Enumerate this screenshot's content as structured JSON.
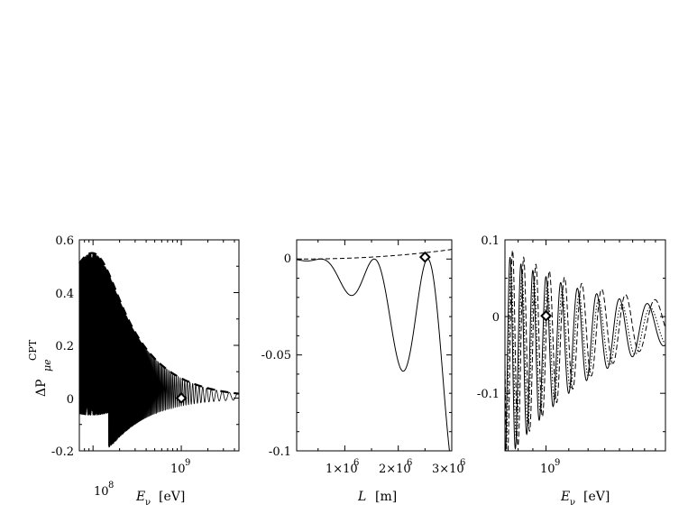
{
  "chart_data": [
    {
      "type": "line",
      "panel": "left",
      "ylabel": {
        "main": "ΔP",
        "sub": "μe",
        "sup": "CPT"
      },
      "xlabel": {
        "var": "E",
        "sub": "ν",
        "unit": "[eV]"
      },
      "xscale": "log",
      "xlim": [
        70000000,
        4500000000
      ],
      "ylim": [
        -0.2,
        0.6
      ],
      "yticks": [
        "-0.2",
        "0",
        "0.2",
        "0.4",
        "0.6"
      ],
      "yticks_values": [
        -0.2,
        0,
        0.2,
        0.4,
        0.6
      ],
      "xticks": [
        {
          "base": "10",
          "exp": "8",
          "value": 100000000
        },
        {
          "base": "10",
          "exp": "9",
          "value": 1000000000
        }
      ],
      "marker": {
        "shape": "diamond",
        "x": 1000000000,
        "y": 0
      },
      "series": [
        {
          "name": "envelope",
          "style": "thick-dashed",
          "peak_x": 110000000,
          "peak_y": 0.55
        },
        {
          "name": "oscillation",
          "style": "solid"
        }
      ]
    },
    {
      "type": "line",
      "panel": "middle",
      "xlabel": {
        "var": "L",
        "unit": "[m]"
      },
      "xlim": [
        100000,
        3000000
      ],
      "ylim": [
        -0.1,
        0.01
      ],
      "yticks": [
        "-0.1",
        "-0.05",
        "0"
      ],
      "yticks_values": [
        -0.1,
        -0.05,
        0
      ],
      "xticks": [
        {
          "mant": "1×10",
          "exp": "6",
          "value": 1000000
        },
        {
          "mant": "2×10",
          "exp": "6",
          "value": 2000000
        },
        {
          "mant": "3×10",
          "exp": "6",
          "value": 3000000
        }
      ],
      "marker": {
        "shape": "diamond",
        "x": 2500000,
        "y": 0.001
      },
      "series": [
        {
          "name": "solid",
          "style": "solid",
          "minima": [
            [
              1000000,
              -0.016
            ],
            [
              2000000,
              -0.055
            ]
          ],
          "end": [
            3000000,
            -0.1
          ]
        },
        {
          "name": "dashed",
          "style": "dashed",
          "end": [
            3000000,
            0.005
          ]
        }
      ]
    },
    {
      "type": "line",
      "panel": "right",
      "xlabel": {
        "var": "E",
        "sub": "ν",
        "unit": "[eV]"
      },
      "xscale": "log",
      "xlim": [
        720000000,
        2600000000
      ],
      "ylim": [
        -0.175,
        0.1
      ],
      "yticks": [
        "-0.1",
        "0",
        "0.1"
      ],
      "yticks_values": [
        -0.1,
        0,
        0.1
      ],
      "xticks": [
        {
          "base": "10",
          "exp": "9",
          "value": 1000000000
        }
      ],
      "marker": {
        "shape": "diamond",
        "x": 1000000000,
        "y": 0.001
      },
      "series": [
        {
          "name": "solid",
          "style": "solid"
        },
        {
          "name": "dashed",
          "style": "dashed"
        },
        {
          "name": "dotted",
          "style": "dotted"
        }
      ]
    }
  ]
}
